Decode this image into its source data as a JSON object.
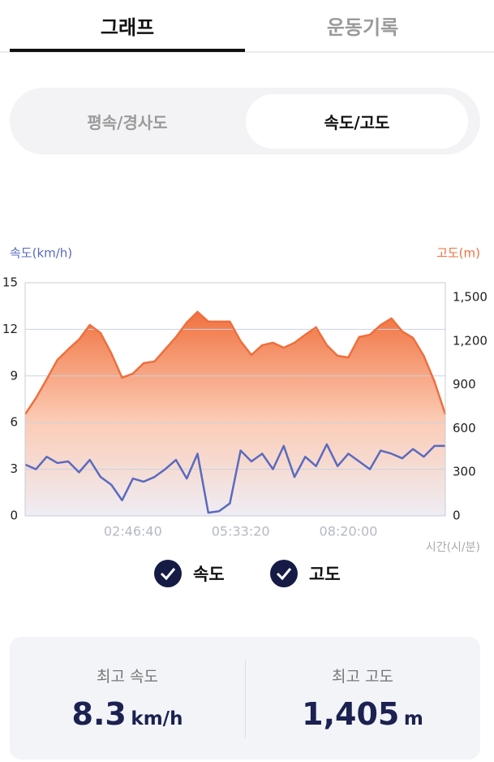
{
  "tabs": [
    {
      "label": "그래프"
    },
    {
      "label": "운동기록"
    }
  ],
  "segments": [
    {
      "label": "평속/경사도"
    },
    {
      "label": "속도/고도"
    }
  ],
  "chart_data": {
    "type": "line",
    "y_label": "속도(km/h)",
    "y2_label": "고도(m)",
    "x_label": "시간(시/분)",
    "x": [
      0,
      1000,
      2000,
      3000,
      4000,
      5000,
      6000,
      7000,
      8000,
      9000,
      10000,
      11000,
      12000,
      13000,
      14000,
      15000,
      16000,
      17000,
      18000,
      19000,
      20000,
      21000,
      22000,
      23000,
      24000,
      25000,
      26000,
      27000,
      28000,
      29000,
      30000,
      31000,
      32000,
      33000,
      34000,
      35000,
      36000,
      37000,
      38000,
      39000
    ],
    "xlim": [
      0,
      39000
    ],
    "xticks": [
      {
        "value": 10000,
        "label": "02:46:40"
      },
      {
        "value": 20000,
        "label": "05:33:20"
      },
      {
        "value": 30000,
        "label": "08:20:00"
      }
    ],
    "ylim": [
      0,
      15
    ],
    "yticks": [
      0,
      3,
      6,
      9,
      12,
      15
    ],
    "y2lim": [
      0,
      1600
    ],
    "y2ticks": [
      0,
      300,
      600,
      900,
      {
        "value": 1200,
        "label": "1,200"
      },
      {
        "value": 1500,
        "label": "1,500"
      }
    ],
    "grid": true,
    "series": [
      {
        "name": "속도",
        "color": "#5a6abf",
        "values": [
          3.3,
          3.0,
          3.8,
          3.4,
          3.5,
          2.8,
          3.6,
          2.5,
          2.0,
          1.0,
          2.4,
          2.2,
          2.5,
          3.0,
          3.6,
          2.4,
          4.0,
          0.2,
          0.3,
          0.8,
          4.2,
          3.5,
          4.0,
          3.0,
          4.5,
          2.5,
          3.8,
          3.2,
          4.6,
          3.2,
          4.0,
          3.5,
          3.0,
          4.2,
          4.0,
          3.7,
          4.3,
          3.8,
          4.5,
          4.5
        ]
      },
      {
        "name": "고도",
        "color": "#ee6f3c",
        "axis": "y2",
        "values": [
          697,
          808,
          937,
          1071,
          1143,
          1210,
          1310,
          1255,
          1115,
          948,
          976,
          1048,
          1059,
          1143,
          1227,
          1327,
          1400,
          1333,
          1333,
          1333,
          1199,
          1104,
          1171,
          1188,
          1154,
          1188,
          1243,
          1294,
          1171,
          1098,
          1087,
          1227,
          1243,
          1310,
          1355,
          1266,
          1221,
          1098,
          920,
          697
        ]
      }
    ]
  },
  "stats": [
    {
      "label": "최고 속도",
      "value": "8.3",
      "unit": "km/h"
    },
    {
      "label": "최고 고도",
      "value": "1,405",
      "unit": "m"
    }
  ]
}
